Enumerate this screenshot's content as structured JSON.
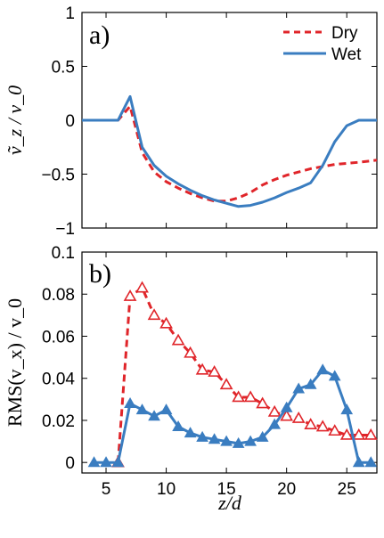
{
  "chart_data": [
    {
      "type": "line",
      "panel_label": "a)",
      "ylabel": "ṽ_z / v_0",
      "xlim": [
        3,
        27.5
      ],
      "ylim": [
        -1,
        1
      ],
      "yticks": [
        "1",
        "0.5",
        "0",
        "−0.5",
        "−1"
      ],
      "ytick_values": [
        1,
        0.5,
        0,
        -0.5,
        -1
      ],
      "legend_position": "top-right",
      "series": [
        {
          "name": "Dry",
          "color": "#e0252a",
          "style": "dashed",
          "x": [
            3,
            6,
            7,
            8,
            9,
            10,
            11,
            12,
            13,
            14,
            15,
            16,
            17,
            18,
            19,
            20,
            21,
            22,
            23,
            24,
            25,
            26,
            27.5
          ],
          "y": [
            0,
            0,
            0.13,
            -0.3,
            -0.48,
            -0.57,
            -0.63,
            -0.68,
            -0.72,
            -0.75,
            -0.75,
            -0.72,
            -0.67,
            -0.6,
            -0.55,
            -0.51,
            -0.48,
            -0.45,
            -0.43,
            -0.41,
            -0.4,
            -0.39,
            -0.37
          ]
        },
        {
          "name": "Wet",
          "color": "#3a7dc0",
          "style": "solid",
          "x": [
            3,
            6,
            7,
            8,
            9,
            10,
            11,
            12,
            13,
            14,
            15,
            16,
            17,
            18,
            19,
            20,
            21,
            22,
            23,
            24,
            25,
            26,
            27.5
          ],
          "y": [
            0,
            0,
            0.22,
            -0.25,
            -0.42,
            -0.52,
            -0.59,
            -0.65,
            -0.7,
            -0.74,
            -0.77,
            -0.8,
            -0.79,
            -0.76,
            -0.72,
            -0.67,
            -0.63,
            -0.58,
            -0.42,
            -0.2,
            -0.05,
            0,
            0
          ]
        }
      ]
    },
    {
      "type": "line",
      "panel_label": "b)",
      "ylabel": "RMS(v_x) / v_0",
      "xlabel": "z/d",
      "xlim": [
        3,
        27.5
      ],
      "ylim": [
        -0.005,
        0.1
      ],
      "xticks": [
        "5",
        "10",
        "15",
        "20",
        "25"
      ],
      "xtick_values": [
        5,
        10,
        15,
        20,
        25
      ],
      "yticks": [
        "0.1",
        "0.08",
        "0.06",
        "0.04",
        "0.02",
        "0"
      ],
      "ytick_values": [
        0.1,
        0.08,
        0.06,
        0.04,
        0.02,
        0
      ],
      "series": [
        {
          "name": "Dry",
          "color": "#e0252a",
          "style": "dashed",
          "marker": "open-triangle",
          "x": [
            6,
            7,
            8,
            9,
            10,
            11,
            12,
            13,
            14,
            15,
            16,
            17,
            18,
            19,
            20,
            21,
            22,
            23,
            24,
            25,
            26,
            27
          ],
          "y": [
            0,
            0.079,
            0.083,
            0.07,
            0.066,
            0.058,
            0.052,
            0.044,
            0.043,
            0.037,
            0.031,
            0.031,
            0.028,
            0.024,
            0.022,
            0.021,
            0.018,
            0.017,
            0.015,
            0.013,
            0.013,
            0.013
          ]
        },
        {
          "name": "Wet",
          "color": "#3a7dc0",
          "style": "solid",
          "marker": "filled-triangle",
          "x": [
            4,
            5,
            6,
            7,
            8,
            9,
            10,
            11,
            12,
            13,
            14,
            15,
            16,
            17,
            18,
            19,
            20,
            21,
            22,
            23,
            24,
            25,
            26,
            27
          ],
          "y": [
            0,
            0,
            0,
            0.028,
            0.025,
            0.022,
            0.025,
            0.017,
            0.014,
            0.012,
            0.011,
            0.01,
            0.009,
            0.01,
            0.012,
            0.018,
            0.026,
            0.035,
            0.037,
            0.044,
            0.041,
            0.025,
            0,
            0
          ]
        }
      ]
    }
  ]
}
